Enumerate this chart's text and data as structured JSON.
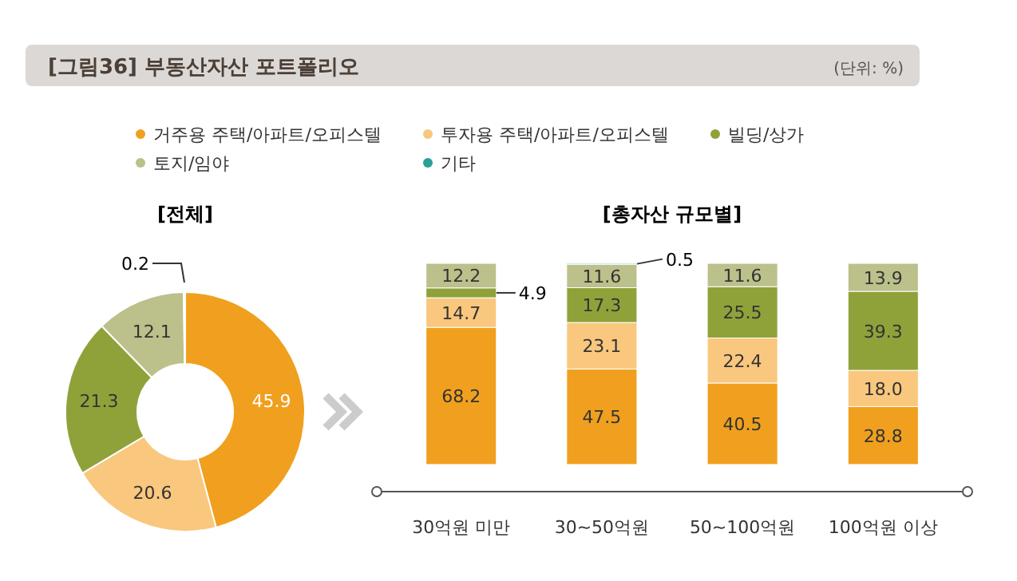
{
  "chart_data": [
    {
      "type": "donut",
      "title": "[전체]",
      "annotations": [
        "[그림36] 부동산자산 포트폴리오",
        "(단위: %)"
      ],
      "categories": [
        "거주용 주택/아파트/오피스텔",
        "투자용 주택/아파트/오피스텔",
        "빌딩/상가",
        "토지/임야",
        "기타"
      ],
      "values": [
        45.9,
        20.6,
        21.3,
        12.1,
        0.2
      ],
      "colors": [
        "#f0a01e",
        "#f9c77d",
        "#8fa23a",
        "#bcc08a",
        "#2aa198"
      ],
      "data_labels": true,
      "legend": "top"
    },
    {
      "type": "bar",
      "title": "[총자산 규모별]",
      "stacked": true,
      "data_labels": true,
      "categories": [
        "30억원 미만",
        "30~50억원",
        "50~100억원",
        "100억원 이상"
      ],
      "series": [
        {
          "color": "#f0a01e",
          "values": [
            68.2,
            47.5,
            40.5,
            28.8
          ]
        },
        {
          "color": "#f9c77d",
          "values": [
            14.7,
            23.1,
            22.4,
            18.0
          ],
          "value_labels": [
            "14.7",
            "23.1",
            "22.4",
            "18.0"
          ]
        },
        {
          "color": "#8fa23a",
          "values": [
            4.9,
            17.3,
            25.5,
            39.3
          ]
        },
        {
          "color": "#bcc08a",
          "values": [
            12.2,
            11.6,
            11.6,
            13.9
          ]
        },
        {
          "color": "#2aa198",
          "values": [
            null,
            0.5,
            null,
            null
          ]
        }
      ]
    }
  ]
}
